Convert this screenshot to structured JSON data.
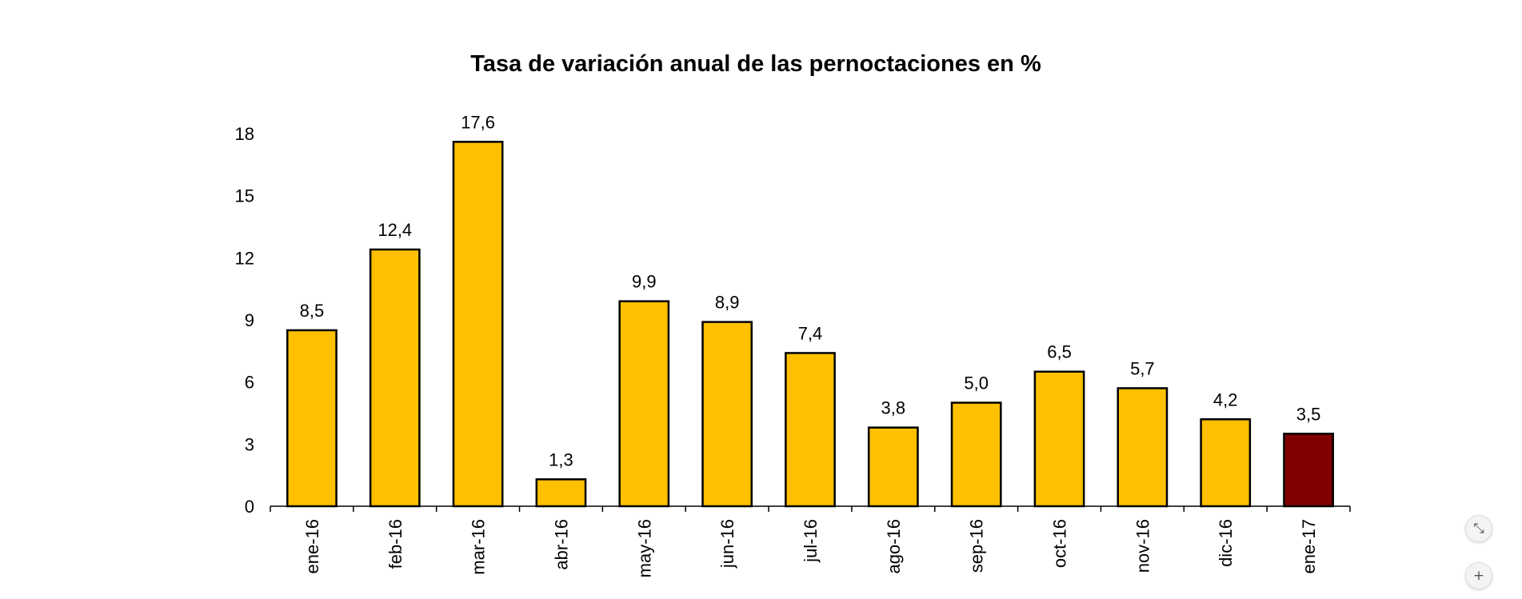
{
  "chart_data": {
    "type": "bar",
    "title": "Tasa de variación anual de las pernoctaciones en %",
    "xlabel": "",
    "ylabel": "",
    "categories": [
      "ene-16",
      "feb-16",
      "mar-16",
      "abr-16",
      "may-16",
      "jun-16",
      "jul-16",
      "ago-16",
      "sep-16",
      "oct-16",
      "nov-16",
      "dic-16",
      "ene-17"
    ],
    "values": [
      8.5,
      12.4,
      17.6,
      1.3,
      9.9,
      8.9,
      7.4,
      3.8,
      5.0,
      6.5,
      5.7,
      4.2,
      3.5
    ],
    "value_labels": [
      "8,5",
      "12,4",
      "17,6",
      "1,3",
      "9,9",
      "8,9",
      "7,4",
      "3,8",
      "5,0",
      "6,5",
      "5,7",
      "4,2",
      "3,5"
    ],
    "ylim": [
      0,
      18
    ],
    "yticks": [
      0,
      3,
      6,
      9,
      12,
      15,
      18
    ],
    "grid": false,
    "legend": "none",
    "colors": {
      "bar": "#FFC000",
      "highlight": "#800000",
      "outline": "#000000"
    },
    "highlight_index": 12
  },
  "controls": {
    "collapse_icon": "collapse-icon",
    "collapse_glyph": "⤡",
    "zoom_in_icon": "plus-icon",
    "zoom_in_glyph": "+"
  }
}
